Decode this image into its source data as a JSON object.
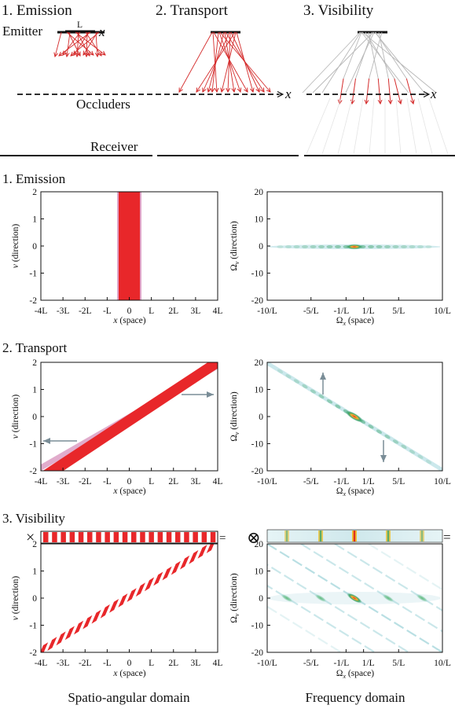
{
  "top": {
    "titles": [
      "1. Emission",
      "2. Transport",
      "3. Visibility"
    ],
    "emitter": "Emitter",
    "L": "L",
    "x": "x",
    "occluders": "Occluders",
    "receiver": "Receiver"
  },
  "rows": {
    "emission": "1. Emission",
    "transport": "2. Transport",
    "visibility": "3. Visibility"
  },
  "axes": {
    "left_ylabel_var": "v",
    "left_ylabel_rest": " (direction)",
    "left_xlabel_var": "x",
    "left_xlabel_rest": " (space)",
    "right_ylabel_var": "Ω",
    "right_ylabel_sub": "v",
    "right_ylabel_rest": " (direction)",
    "right_xlabel_var": "Ω",
    "right_xlabel_sub": "x",
    "right_xlabel_rest": " (space)",
    "left_xticks": [
      "-4L",
      "-3L",
      "-2L",
      "-L",
      "0",
      "L",
      "2L",
      "3L",
      "4L"
    ],
    "left_yticks": [
      "2",
      "1",
      "0",
      "-1",
      "-2"
    ],
    "right_xticks": [
      "-10/L",
      "-5/L",
      "-1/L",
      "1/L",
      "5/L",
      "10/L"
    ],
    "right_yticks_a": [
      "20",
      "10",
      "0",
      "-10",
      "-20"
    ],
    "right_yticks_b": [
      "20",
      "10",
      "0",
      "-10",
      "-20"
    ],
    "right_yticks_c": [
      "20",
      "10",
      "0",
      "-10",
      "-20"
    ]
  },
  "ops": {
    "times": "×",
    "otimes": "⊗",
    "equals": "="
  },
  "bottom": {
    "left": "Spatio-angular domain",
    "right": "Frequency domain"
  },
  "colors": {
    "ray": "#d42b2b",
    "band": "#e8272a",
    "band_edge": "#c45a9a",
    "grey_ray": "#b8b8b8",
    "arrow": "#7a8d97",
    "spec_green": "#3aa36a",
    "spec_orange": "#f0a030"
  }
}
